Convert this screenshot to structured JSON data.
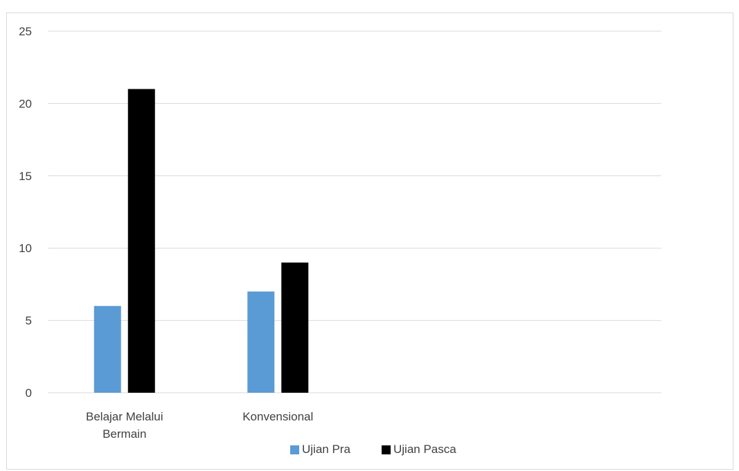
{
  "chart_data": {
    "type": "bar",
    "categories": [
      [
        "Belajar Melalui",
        "Bermain"
      ],
      [
        "Konvensional"
      ],
      [],
      []
    ],
    "series": [
      {
        "name": "Ujian Pra",
        "values": [
          6,
          7,
          null,
          null
        ],
        "color": "#5b9bd5"
      },
      {
        "name": "Ujian Pasca",
        "values": [
          21,
          9,
          null,
          null
        ],
        "color": "#000000"
      }
    ],
    "ylim": [
      0,
      25
    ],
    "yticks": [
      0,
      5,
      10,
      15,
      20,
      25
    ],
    "grid": true,
    "legend": "bottom",
    "title": "",
    "xlabel": "",
    "ylabel": ""
  }
}
